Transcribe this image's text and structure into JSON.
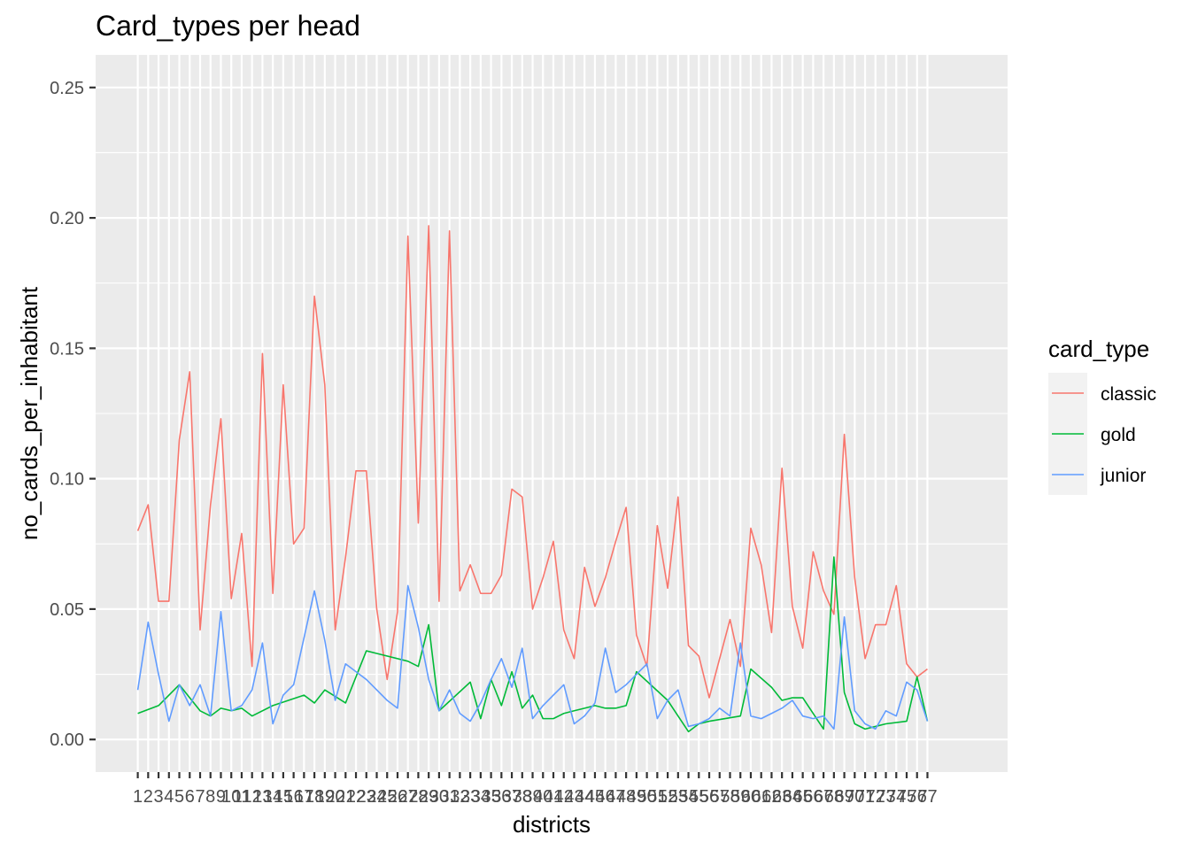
{
  "chart_data": {
    "type": "line",
    "title": "Card_types per head",
    "xlabel": "districts",
    "ylabel": "no_cards_per_inhabitant",
    "ylim": [
      -0.0125,
      0.2625
    ],
    "yticks": [
      "0.00",
      "0.05",
      "0.10",
      "0.15",
      "0.20",
      "0.25"
    ],
    "ytick_values": [
      0,
      0.05,
      0.1,
      0.15,
      0.2,
      0.25
    ],
    "x": [
      1,
      2,
      3,
      4,
      5,
      6,
      7,
      8,
      9,
      10,
      11,
      12,
      13,
      14,
      15,
      16,
      17,
      18,
      19,
      20,
      21,
      22,
      23,
      24,
      25,
      26,
      27,
      28,
      29,
      30,
      31,
      32,
      33,
      34,
      35,
      36,
      37,
      38,
      39,
      40,
      41,
      42,
      43,
      44,
      45,
      46,
      47,
      48,
      49,
      50,
      51,
      52,
      53,
      54,
      55,
      56,
      57,
      58,
      59,
      60,
      61,
      62,
      63,
      64,
      65,
      66,
      67,
      68,
      69,
      70,
      71,
      72,
      73,
      74,
      75,
      76,
      77
    ],
    "grid": true,
    "legend": {
      "title": "card_type",
      "position": "right"
    },
    "series": [
      {
        "name": "classic",
        "color": "#F8766D",
        "values": [
          0.08,
          0.09,
          0.053,
          0.053,
          0.115,
          0.141,
          0.042,
          0.09,
          0.123,
          0.054,
          0.079,
          0.028,
          0.148,
          0.056,
          0.136,
          0.075,
          0.081,
          0.17,
          0.136,
          0.042,
          0.07,
          0.103,
          0.103,
          0.05,
          0.023,
          0.049,
          0.193,
          0.083,
          0.197,
          0.053,
          0.195,
          0.057,
          0.067,
          0.056,
          0.056,
          0.063,
          0.096,
          0.093,
          0.05,
          0.062,
          0.076,
          0.042,
          0.031,
          0.066,
          0.051,
          0.062,
          0.076,
          0.089,
          0.04,
          0.028,
          0.082,
          0.058,
          0.093,
          0.036,
          0.032,
          0.016,
          0.031,
          0.046,
          0.028,
          0.081,
          0.067,
          0.041,
          0.104,
          0.051,
          0.035,
          0.072,
          0.057,
          0.048,
          0.117,
          0.062,
          0.031,
          0.044,
          0.044,
          0.059,
          0.029,
          0.024,
          0.027
        ]
      },
      {
        "name": "gold",
        "color": "#00BA38",
        "x": [
          1,
          3,
          5,
          7,
          8,
          9,
          10,
          11,
          12,
          14,
          17,
          18,
          19,
          21,
          22,
          23,
          24,
          27,
          28,
          29,
          30,
          33,
          34,
          35,
          36,
          37,
          38,
          39,
          40,
          41,
          42,
          43,
          44,
          45,
          46,
          47,
          48,
          49,
          52,
          54,
          55,
          56,
          59,
          60,
          62,
          63,
          64,
          65,
          67,
          68,
          69,
          70,
          71,
          72,
          73,
          75,
          76,
          77
        ],
        "values": [
          0.01,
          0.013,
          0.021,
          0.011,
          0.009,
          0.012,
          0.011,
          0.012,
          0.009,
          0.013,
          0.017,
          0.014,
          0.019,
          0.014,
          0.024,
          0.034,
          0.033,
          0.03,
          0.028,
          0.044,
          0.011,
          0.022,
          0.008,
          0.023,
          0.013,
          0.026,
          0.012,
          0.017,
          0.008,
          0.008,
          0.01,
          0.011,
          0.012,
          0.013,
          0.012,
          0.012,
          0.013,
          0.026,
          0.015,
          0.003,
          0.006,
          0.007,
          0.009,
          0.027,
          0.02,
          0.015,
          0.016,
          0.016,
          0.004,
          0.07,
          0.018,
          0.006,
          0.004,
          0.005,
          0.006,
          0.007,
          0.024,
          0.007
        ]
      },
      {
        "name": "junior",
        "color": "#619CFF",
        "values": [
          0.019,
          0.045,
          0.025,
          0.007,
          0.021,
          0.013,
          0.021,
          0.009,
          0.049,
          0.011,
          0.013,
          0.019,
          0.037,
          0.006,
          0.017,
          0.021,
          0.039,
          0.057,
          0.038,
          0.015,
          0.029,
          0.026,
          0.023,
          0.019,
          0.015,
          0.012,
          0.059,
          0.043,
          0.023,
          0.011,
          0.019,
          0.01,
          0.007,
          0.014,
          0.023,
          0.031,
          0.02,
          0.035,
          0.008,
          0.013,
          0.017,
          0.021,
          0.006,
          0.009,
          0.014,
          0.035,
          0.018,
          0.021,
          0.025,
          0.029,
          0.008,
          0.015,
          0.019,
          0.005,
          0.006,
          0.008,
          0.012,
          0.009,
          0.037,
          0.009,
          0.008,
          0.01,
          0.012,
          0.015,
          0.009,
          0.008,
          0.009,
          0.004,
          0.047,
          0.011,
          0.006,
          0.004,
          0.011,
          0.009,
          0.022,
          0.019,
          0.007
        ]
      }
    ]
  }
}
